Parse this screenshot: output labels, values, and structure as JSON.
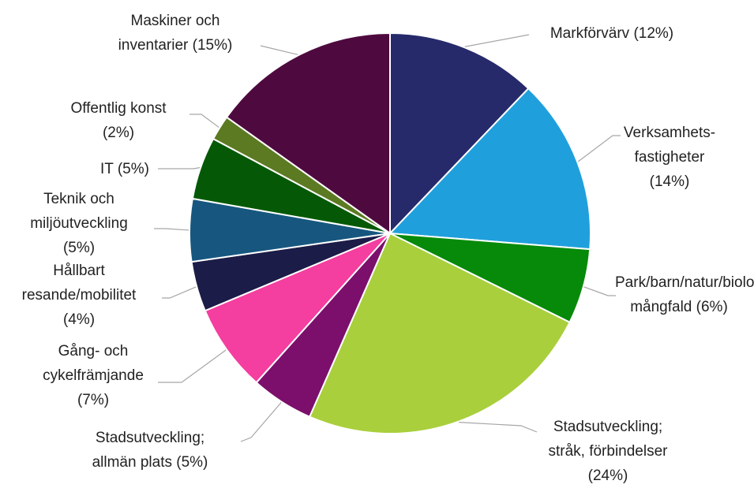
{
  "chart_data": {
    "type": "pie",
    "categories": [
      "Markförvärv",
      "Verksamhets-fastigheter",
      "Park/barn/natur/biologisk mångfald",
      "Stadsutveckling; stråk, förbindelser",
      "Stadsutveckling; allmän plats",
      "Gång- och cykelfrämjande",
      "Hållbart resande/mobilitet",
      "Teknik och miljöutveckling",
      "IT",
      "Offentlig konst",
      "Maskiner och inventarier"
    ],
    "values": [
      12,
      14,
      6,
      24,
      5,
      7,
      4,
      5,
      5,
      2,
      15
    ],
    "value_labels": [
      "(12%)",
      "(14%)",
      "(6%)",
      "(24%)",
      "(5%)",
      "(7%)",
      "(4%)",
      "(5%)",
      "(5%)",
      "(2%)",
      "(15%)"
    ],
    "colors": [
      "#262a6b",
      "#1fa0dc",
      "#078a0a",
      "#a9cf3c",
      "#7c0f6b",
      "#f43ea0",
      "#1b1c47",
      "#17577f",
      "#055906",
      "#5c7a22",
      "#4e0a3f"
    ]
  }
}
